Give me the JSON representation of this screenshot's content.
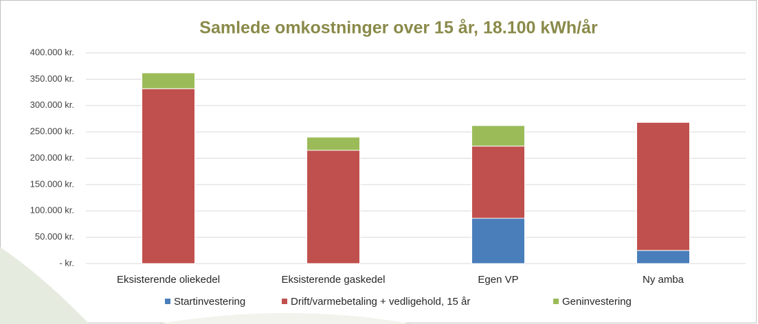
{
  "chart_data": {
    "type": "stacked_bar",
    "title": "Samlede omkostninger over 15 år, 18.100 kWh/år",
    "categories": [
      "Eksisterende oliekedel",
      "Eksisterende gaskedel",
      "Egen VP",
      "Ny amba"
    ],
    "series": [
      {
        "name": "Startinvestering",
        "color": "#4a7ebb",
        "values": [
          0,
          0,
          86000,
          25000
        ]
      },
      {
        "name": "Drift/varmebetaling + vedligehold, 15 år",
        "color": "#c0504d",
        "values": [
          332000,
          215000,
          137000,
          243000
        ]
      },
      {
        "name": "Geninvestering",
        "color": "#9bbb59",
        "values": [
          30000,
          25000,
          39000,
          0
        ]
      }
    ],
    "ylim": [
      0,
      400000
    ],
    "yticks": [
      {
        "value": 0,
        "label": "-   kr."
      },
      {
        "value": 50000,
        "label": "50.000 kr."
      },
      {
        "value": 100000,
        "label": "100.000 kr."
      },
      {
        "value": 150000,
        "label": "150.000 kr."
      },
      {
        "value": 200000,
        "label": "200.000 kr."
      },
      {
        "value": 250000,
        "label": "250.000 kr."
      },
      {
        "value": 300000,
        "label": "300.000 kr."
      },
      {
        "value": 350000,
        "label": "350.000 kr."
      },
      {
        "value": 400000,
        "label": "400.000 kr."
      }
    ],
    "grid": true,
    "legend": "bottom"
  }
}
